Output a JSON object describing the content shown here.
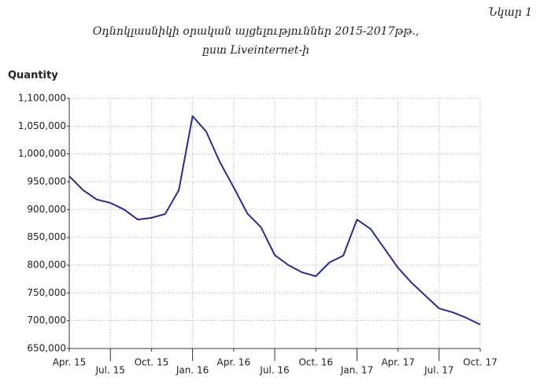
{
  "chart_data": {
    "type": "line",
    "figure_label": "Նկար 1",
    "title": "Օդնոկլասնիկի օրական այցելություններ 2015-2017թթ.,",
    "subtitle": "ըստ Liveinternet-ի",
    "y_label": "Quantity",
    "categories": [
      "Apr. 15",
      null,
      null,
      "Jul. 15",
      null,
      null,
      "Oct. 15",
      null,
      null,
      "Jan. 16",
      null,
      null,
      "Apr. 16",
      null,
      null,
      "Jul. 16",
      null,
      null,
      "Oct. 16",
      null,
      null,
      "Jan. 17",
      null,
      null,
      "Apr. 17",
      null,
      null,
      "Jul. 17",
      null,
      null,
      "Oct. 17"
    ],
    "values": [
      960000,
      935000,
      918000,
      912000,
      900000,
      882000,
      885000,
      892000,
      935000,
      1068000,
      1040000,
      985000,
      940000,
      893000,
      868000,
      818000,
      800000,
      787000,
      780000,
      805000,
      817000,
      882000,
      865000,
      830000,
      795000,
      768000,
      745000,
      722000,
      715000,
      705000,
      693000
    ],
    "color": "#2b2b8c",
    "ylim": [
      650000,
      1100000
    ],
    "yticks": [
      {
        "value": 650000,
        "label": "650,000"
      },
      {
        "value": 700000,
        "label": "700,000"
      },
      {
        "value": 750000,
        "label": "750,000"
      },
      {
        "value": 800000,
        "label": "800,000"
      },
      {
        "value": 850000,
        "label": "850,000"
      },
      {
        "value": 900000,
        "label": "900,000"
      },
      {
        "value": 950000,
        "label": "950,000"
      },
      {
        "value": 1000000,
        "label": "1,000,000"
      },
      {
        "value": 1050000,
        "label": "1,050,000"
      },
      {
        "value": 1100000,
        "label": "1,100,000"
      }
    ],
    "grid": true
  }
}
